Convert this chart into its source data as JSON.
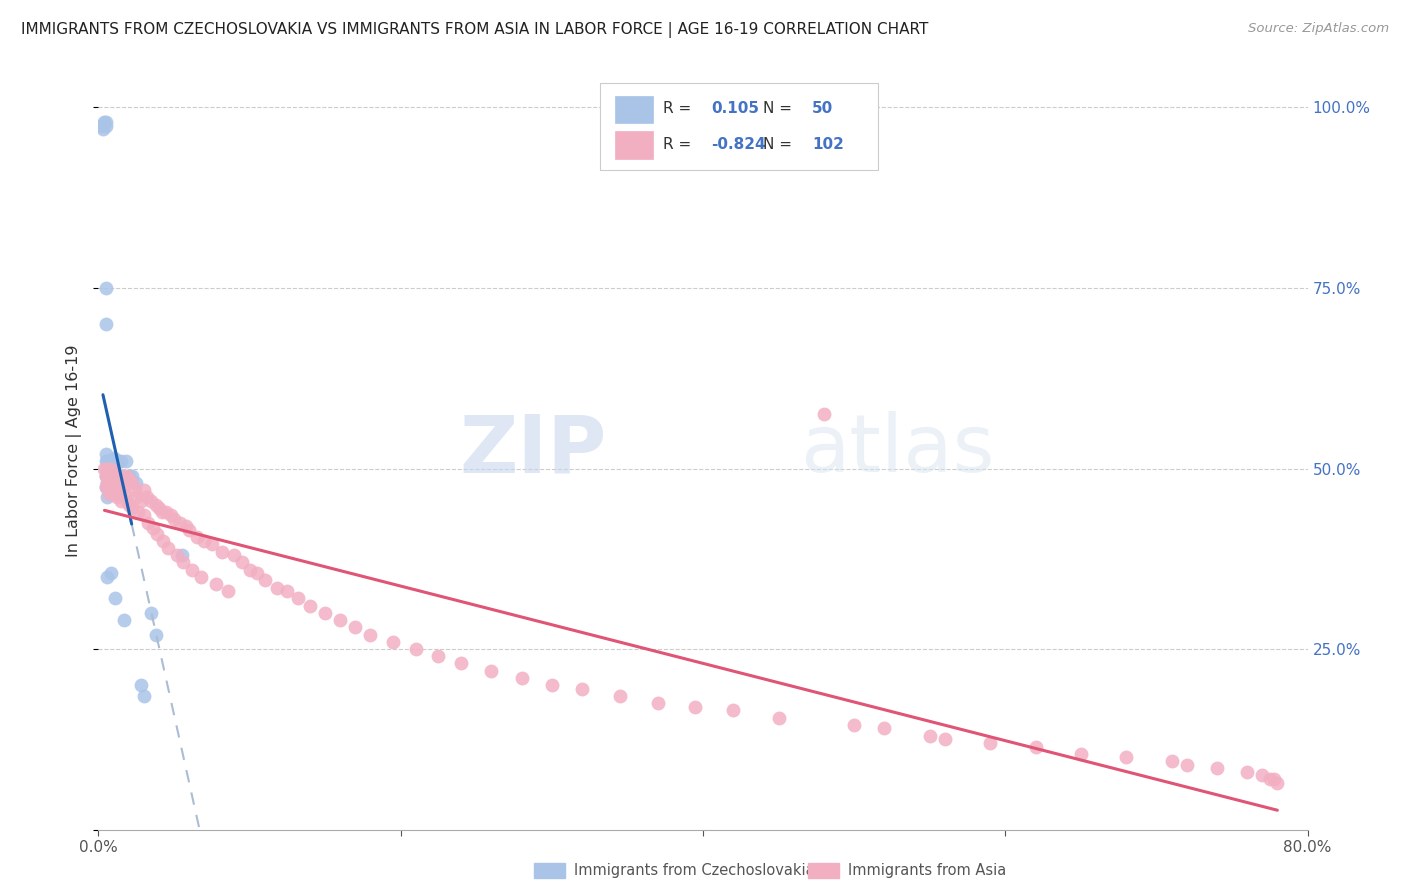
{
  "title": "IMMIGRANTS FROM CZECHOSLOVAKIA VS IMMIGRANTS FROM ASIA IN LABOR FORCE | AGE 16-19 CORRELATION CHART",
  "source": "Source: ZipAtlas.com",
  "ylabel": "In Labor Force | Age 16-19",
  "legend_label1": "Immigrants from Czechoslovakia",
  "legend_label2": "Immigrants from Asia",
  "R1": 0.105,
  "N1": 50,
  "R2": -0.824,
  "N2": 102,
  "color_czech": "#aac4e8",
  "color_asia": "#f2afc2",
  "color_czech_line": "#2060b0",
  "color_asia_line": "#e05575",
  "color_diag": "#aabdd4",
  "watermark_zip": "ZIP",
  "watermark_atlas": "atlas",
  "xlim": [
    0.0,
    0.8
  ],
  "ylim": [
    0.0,
    1.05
  ],
  "background_color": "#ffffff",
  "czech_x": [
    0.002,
    0.003,
    0.004,
    0.005,
    0.005,
    0.005,
    0.005,
    0.005,
    0.005,
    0.005,
    0.005,
    0.005,
    0.006,
    0.006,
    0.006,
    0.006,
    0.006,
    0.006,
    0.007,
    0.007,
    0.008,
    0.008,
    0.008,
    0.008,
    0.008,
    0.009,
    0.009,
    0.01,
    0.01,
    0.01,
    0.01,
    0.01,
    0.011,
    0.012,
    0.012,
    0.012,
    0.013,
    0.014,
    0.015,
    0.015,
    0.017,
    0.018,
    0.02,
    0.022,
    0.025,
    0.028,
    0.03,
    0.035,
    0.038,
    0.055
  ],
  "czech_y": [
    0.975,
    0.97,
    0.98,
    0.98,
    0.975,
    0.75,
    0.7,
    0.52,
    0.51,
    0.5,
    0.49,
    0.475,
    0.51,
    0.5,
    0.49,
    0.48,
    0.46,
    0.35,
    0.51,
    0.49,
    0.51,
    0.5,
    0.49,
    0.48,
    0.355,
    0.51,
    0.49,
    0.515,
    0.51,
    0.5,
    0.49,
    0.48,
    0.32,
    0.51,
    0.49,
    0.48,
    0.51,
    0.49,
    0.51,
    0.48,
    0.29,
    0.51,
    0.49,
    0.49,
    0.48,
    0.2,
    0.185,
    0.3,
    0.27,
    0.38
  ],
  "asia_x": [
    0.004,
    0.005,
    0.005,
    0.006,
    0.006,
    0.007,
    0.007,
    0.008,
    0.008,
    0.009,
    0.01,
    0.01,
    0.011,
    0.012,
    0.012,
    0.013,
    0.014,
    0.015,
    0.015,
    0.016,
    0.017,
    0.018,
    0.019,
    0.02,
    0.02,
    0.022,
    0.022,
    0.024,
    0.025,
    0.026,
    0.028,
    0.03,
    0.03,
    0.032,
    0.033,
    0.035,
    0.036,
    0.038,
    0.039,
    0.04,
    0.042,
    0.043,
    0.045,
    0.046,
    0.048,
    0.05,
    0.052,
    0.054,
    0.056,
    0.058,
    0.06,
    0.062,
    0.065,
    0.068,
    0.07,
    0.075,
    0.078,
    0.082,
    0.086,
    0.09,
    0.095,
    0.1,
    0.105,
    0.11,
    0.118,
    0.125,
    0.132,
    0.14,
    0.15,
    0.16,
    0.17,
    0.18,
    0.195,
    0.21,
    0.225,
    0.24,
    0.26,
    0.28,
    0.3,
    0.32,
    0.345,
    0.37,
    0.395,
    0.42,
    0.45,
    0.48,
    0.5,
    0.52,
    0.55,
    0.56,
    0.59,
    0.62,
    0.65,
    0.68,
    0.71,
    0.72,
    0.74,
    0.76,
    0.77,
    0.775,
    0.778,
    0.78
  ],
  "asia_y": [
    0.5,
    0.49,
    0.475,
    0.5,
    0.48,
    0.49,
    0.465,
    0.5,
    0.47,
    0.49,
    0.49,
    0.465,
    0.48,
    0.49,
    0.46,
    0.48,
    0.47,
    0.49,
    0.455,
    0.475,
    0.465,
    0.49,
    0.455,
    0.485,
    0.45,
    0.48,
    0.445,
    0.47,
    0.46,
    0.44,
    0.455,
    0.47,
    0.435,
    0.46,
    0.425,
    0.455,
    0.418,
    0.45,
    0.41,
    0.445,
    0.44,
    0.4,
    0.44,
    0.39,
    0.435,
    0.43,
    0.38,
    0.425,
    0.37,
    0.42,
    0.415,
    0.36,
    0.405,
    0.35,
    0.4,
    0.395,
    0.34,
    0.385,
    0.33,
    0.38,
    0.37,
    0.36,
    0.355,
    0.345,
    0.335,
    0.33,
    0.32,
    0.31,
    0.3,
    0.29,
    0.28,
    0.27,
    0.26,
    0.25,
    0.24,
    0.23,
    0.22,
    0.21,
    0.2,
    0.195,
    0.185,
    0.175,
    0.17,
    0.165,
    0.155,
    0.575,
    0.145,
    0.14,
    0.13,
    0.125,
    0.12,
    0.115,
    0.105,
    0.1,
    0.095,
    0.09,
    0.085,
    0.08,
    0.075,
    0.07,
    0.07,
    0.065
  ]
}
